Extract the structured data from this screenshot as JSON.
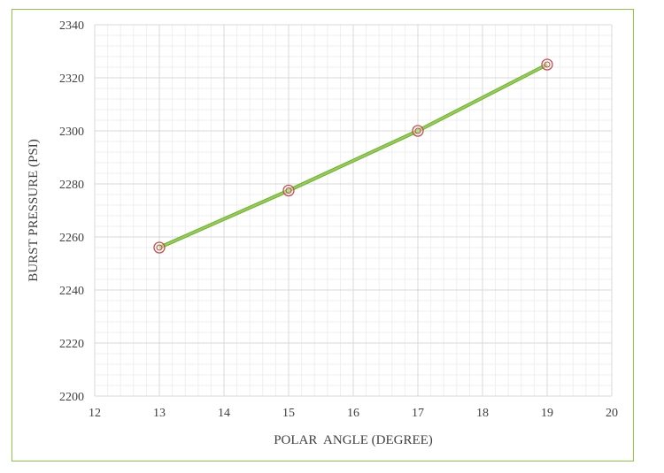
{
  "chart_data": {
    "type": "line",
    "title": "",
    "xlabel": "POLAR  ANGLE (DEGREE)",
    "ylabel": "BURST PRESSURE (PSI)",
    "xlim": [
      12,
      20
    ],
    "ylim": [
      2200,
      2340
    ],
    "x_ticks": [
      12,
      13,
      14,
      15,
      16,
      17,
      18,
      19,
      20
    ],
    "y_ticks": [
      2200,
      2220,
      2240,
      2260,
      2280,
      2300,
      2320,
      2340
    ],
    "grid": true,
    "legend": "none",
    "series": [
      {
        "x": [
          13,
          15,
          17,
          19
        ],
        "y": [
          2256,
          2277.5,
          2300,
          2325
        ],
        "line_color": "#92d050",
        "marker": "double-circle",
        "marker_color": "#c0504d"
      }
    ]
  },
  "colors": {
    "frame_border": "#8dc63f",
    "major_grid": "#d9d9d9",
    "minor_grid": "#efefef",
    "text": "#404040"
  }
}
